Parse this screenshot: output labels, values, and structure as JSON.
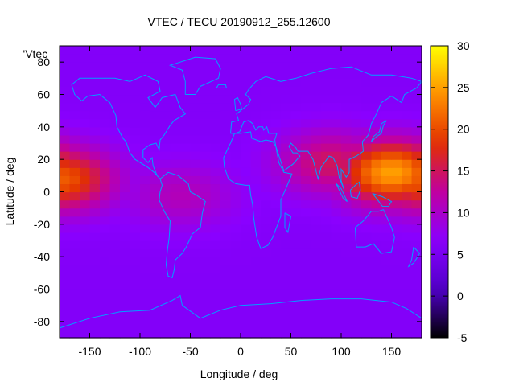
{
  "chart_data": {
    "type": "heatmap",
    "title": "VTEC / TECU 20190912_255.12600",
    "xlabel": "Longitude / deg",
    "ylabel": "Latitude / deg",
    "key_label": "'Vtec_",
    "xlim": [
      -180,
      180
    ],
    "ylim": [
      -90,
      90
    ],
    "x_ticks": [
      -150,
      -100,
      -50,
      0,
      50,
      100,
      150
    ],
    "y_ticks": [
      -80,
      -60,
      -40,
      -20,
      0,
      20,
      40,
      60,
      80
    ],
    "colorbar": {
      "range": [
        -5,
        30
      ],
      "ticks": [
        -5,
        0,
        5,
        10,
        15,
        20,
        25,
        30
      ],
      "palette": [
        "#000000",
        "#5000c8",
        "#8a00ff",
        "#c000a0",
        "#e23000",
        "#ff9000",
        "#ffff00"
      ]
    },
    "approx_field": {
      "background_tecu": 6,
      "enhancements": [
        {
          "lon": -180,
          "lat": 8,
          "peak_tecu": 21
        },
        {
          "lon": -60,
          "lat": -2,
          "peak_tecu": 11
        },
        {
          "lon": 150,
          "lat": 12,
          "peak_tecu": 25
        },
        {
          "lon": 90,
          "lat": 18,
          "peak_tecu": 15
        }
      ]
    },
    "coastline_color": "#00a0ff"
  }
}
